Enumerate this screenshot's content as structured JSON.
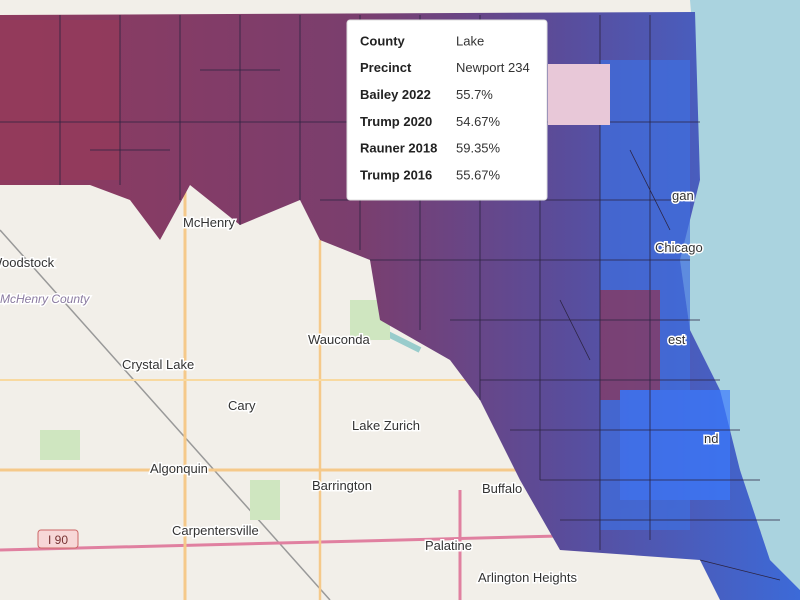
{
  "tooltip": {
    "rows": [
      {
        "label": "County",
        "value": "Lake"
      },
      {
        "label": "Precinct",
        "value": "Newport 234"
      },
      {
        "label": "Bailey 2022",
        "value": "55.7%"
      },
      {
        "label": "Trump 2020",
        "value": "54.67%"
      },
      {
        "label": "Rauner 2018",
        "value": "59.35%"
      },
      {
        "label": "Trump 2016",
        "value": "55.67%"
      }
    ]
  },
  "map_labels": [
    "Woodstock",
    "McHenry County",
    "McHenry",
    "Crystal Lake",
    "Wauconda",
    "Cary",
    "Lake Zurich",
    "Algonquin",
    "Barrington",
    "Buffalo",
    "Carpentersville",
    "Palatine",
    "Arlington Heights",
    "I 90",
    "Chicago",
    "gan",
    "est",
    "nd"
  ]
}
